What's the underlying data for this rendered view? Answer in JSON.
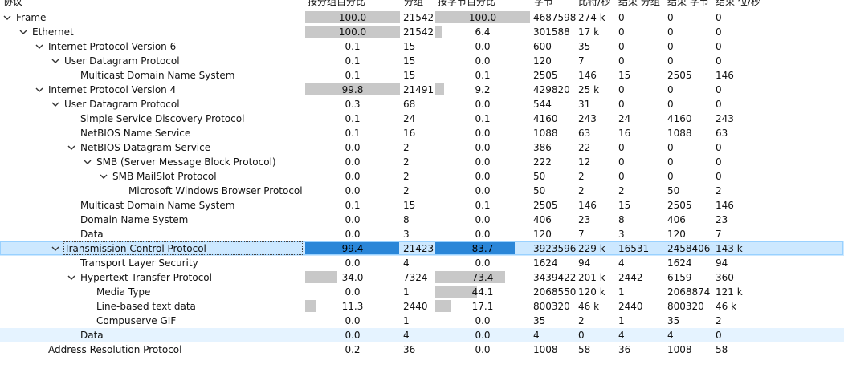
{
  "columns": [
    "协议",
    "按分组百分比",
    "分组",
    "按字节百分比",
    "字节",
    "比特/秒",
    "结束 分组",
    "结束 字节",
    "结束 位/秒"
  ],
  "rows": [
    {
      "level": 0,
      "expand": "open",
      "name": "Frame",
      "pp": "100.0",
      "pp_frac": 1.0,
      "packets": "21542",
      "bp": "100.0",
      "bp_frac": 1.0,
      "bytes": "4687598",
      "bps": "274 k",
      "ep": "0",
      "eb": "0",
      "ebps": "0"
    },
    {
      "level": 1,
      "expand": "open",
      "name": "Ethernet",
      "pp": "100.0",
      "pp_frac": 1.0,
      "packets": "21542",
      "bp": "6.4",
      "bp_frac": 0.064,
      "bytes": "301588",
      "bps": "17 k",
      "ep": "0",
      "eb": "0",
      "ebps": "0"
    },
    {
      "level": 2,
      "expand": "open",
      "name": "Internet Protocol Version 6",
      "pp": "0.1",
      "pp_frac": 0.001,
      "packets": "15",
      "bp": "0.0",
      "bp_frac": 0.0,
      "bytes": "600",
      "bps": "35",
      "ep": "0",
      "eb": "0",
      "ebps": "0"
    },
    {
      "level": 3,
      "expand": "open",
      "name": "User Datagram Protocol",
      "pp": "0.1",
      "pp_frac": 0.001,
      "packets": "15",
      "bp": "0.0",
      "bp_frac": 0.0,
      "bytes": "120",
      "bps": "7",
      "ep": "0",
      "eb": "0",
      "ebps": "0"
    },
    {
      "level": 4,
      "expand": "none",
      "name": "Multicast Domain Name System",
      "pp": "0.1",
      "pp_frac": 0.001,
      "packets": "15",
      "bp": "0.1",
      "bp_frac": 0.001,
      "bytes": "2505",
      "bps": "146",
      "ep": "15",
      "eb": "2505",
      "ebps": "146"
    },
    {
      "level": 2,
      "expand": "open",
      "name": "Internet Protocol Version 4",
      "pp": "99.8",
      "pp_frac": 0.998,
      "packets": "21491",
      "bp": "9.2",
      "bp_frac": 0.092,
      "bytes": "429820",
      "bps": "25 k",
      "ep": "0",
      "eb": "0",
      "ebps": "0"
    },
    {
      "level": 3,
      "expand": "open",
      "name": "User Datagram Protocol",
      "pp": "0.3",
      "pp_frac": 0.003,
      "packets": "68",
      "bp": "0.0",
      "bp_frac": 0.0,
      "bytes": "544",
      "bps": "31",
      "ep": "0",
      "eb": "0",
      "ebps": "0"
    },
    {
      "level": 4,
      "expand": "none",
      "name": "Simple Service Discovery Protocol",
      "pp": "0.1",
      "pp_frac": 0.001,
      "packets": "24",
      "bp": "0.1",
      "bp_frac": 0.001,
      "bytes": "4160",
      "bps": "243",
      "ep": "24",
      "eb": "4160",
      "ebps": "243"
    },
    {
      "level": 4,
      "expand": "none",
      "name": "NetBIOS Name Service",
      "pp": "0.1",
      "pp_frac": 0.001,
      "packets": "16",
      "bp": "0.0",
      "bp_frac": 0.0,
      "bytes": "1088",
      "bps": "63",
      "ep": "16",
      "eb": "1088",
      "ebps": "63"
    },
    {
      "level": 4,
      "expand": "open",
      "name": "NetBIOS Datagram Service",
      "pp": "0.0",
      "pp_frac": 0.0,
      "packets": "2",
      "bp": "0.0",
      "bp_frac": 0.0,
      "bytes": "386",
      "bps": "22",
      "ep": "0",
      "eb": "0",
      "ebps": "0"
    },
    {
      "level": 5,
      "expand": "open",
      "name": "SMB (Server Message Block Protocol)",
      "pp": "0.0",
      "pp_frac": 0.0,
      "packets": "2",
      "bp": "0.0",
      "bp_frac": 0.0,
      "bytes": "222",
      "bps": "12",
      "ep": "0",
      "eb": "0",
      "ebps": "0"
    },
    {
      "level": 6,
      "expand": "open",
      "name": "SMB MailSlot Protocol",
      "pp": "0.0",
      "pp_frac": 0.0,
      "packets": "2",
      "bp": "0.0",
      "bp_frac": 0.0,
      "bytes": "50",
      "bps": "2",
      "ep": "0",
      "eb": "0",
      "ebps": "0"
    },
    {
      "level": 7,
      "expand": "none",
      "name": "Microsoft Windows Browser Protocol",
      "pp": "0.0",
      "pp_frac": 0.0,
      "packets": "2",
      "bp": "0.0",
      "bp_frac": 0.0,
      "bytes": "50",
      "bps": "2",
      "ep": "2",
      "eb": "50",
      "ebps": "2"
    },
    {
      "level": 4,
      "expand": "none",
      "name": "Multicast Domain Name System",
      "pp": "0.1",
      "pp_frac": 0.001,
      "packets": "15",
      "bp": "0.1",
      "bp_frac": 0.001,
      "bytes": "2505",
      "bps": "146",
      "ep": "15",
      "eb": "2505",
      "ebps": "146"
    },
    {
      "level": 4,
      "expand": "none",
      "name": "Domain Name System",
      "pp": "0.0",
      "pp_frac": 0.0,
      "packets": "8",
      "bp": "0.0",
      "bp_frac": 0.0,
      "bytes": "406",
      "bps": "23",
      "ep": "8",
      "eb": "406",
      "ebps": "23"
    },
    {
      "level": 4,
      "expand": "none",
      "name": "Data",
      "pp": "0.0",
      "pp_frac": 0.0,
      "packets": "3",
      "bp": "0.0",
      "bp_frac": 0.0,
      "bytes": "120",
      "bps": "7",
      "ep": "3",
      "eb": "120",
      "ebps": "7"
    },
    {
      "level": 3,
      "expand": "open",
      "name": "Transmission Control Protocol",
      "pp": "99.4",
      "pp_frac": 0.994,
      "packets": "21423",
      "bp": "83.7",
      "bp_frac": 0.837,
      "bytes": "3923596",
      "bps": "229 k",
      "ep": "16531",
      "eb": "2458406",
      "ebps": "143 k",
      "selected": true
    },
    {
      "level": 4,
      "expand": "none",
      "name": "Transport Layer Security",
      "pp": "0.0",
      "pp_frac": 0.0,
      "packets": "4",
      "bp": "0.0",
      "bp_frac": 0.0,
      "bytes": "1624",
      "bps": "94",
      "ep": "4",
      "eb": "1624",
      "ebps": "94"
    },
    {
      "level": 4,
      "expand": "open",
      "name": "Hypertext Transfer Protocol",
      "pp": "34.0",
      "pp_frac": 0.34,
      "packets": "7324",
      "bp": "73.4",
      "bp_frac": 0.734,
      "bytes": "3439422",
      "bps": "201 k",
      "ep": "2442",
      "eb": "6159",
      "ebps": "360"
    },
    {
      "level": 5,
      "expand": "none",
      "name": "Media Type",
      "pp": "0.0",
      "pp_frac": 0.0,
      "packets": "1",
      "bp": "44.1",
      "bp_frac": 0.441,
      "bytes": "2068550",
      "bps": "120 k",
      "ep": "1",
      "eb": "2068874",
      "ebps": "121 k"
    },
    {
      "level": 5,
      "expand": "none",
      "name": "Line-based text data",
      "pp": "11.3",
      "pp_frac": 0.113,
      "packets": "2440",
      "bp": "17.1",
      "bp_frac": 0.171,
      "bytes": "800320",
      "bps": "46 k",
      "ep": "2440",
      "eb": "800320",
      "ebps": "46 k"
    },
    {
      "level": 5,
      "expand": "none",
      "name": "Compuserve GIF",
      "pp": "0.0",
      "pp_frac": 0.0,
      "packets": "1",
      "bp": "0.0",
      "bp_frac": 0.0,
      "bytes": "35",
      "bps": "2",
      "ep": "1",
      "eb": "35",
      "ebps": "2"
    },
    {
      "level": 4,
      "expand": "none",
      "name": "Data",
      "pp": "0.0",
      "pp_frac": 0.0,
      "packets": "4",
      "bp": "0.0",
      "bp_frac": 0.0,
      "bytes": "4",
      "bps": "0",
      "ep": "4",
      "eb": "4",
      "ebps": "0",
      "hover": true
    },
    {
      "level": 2,
      "expand": "none",
      "name": "Address Resolution Protocol",
      "pp": "0.2",
      "pp_frac": 0.002,
      "packets": "36",
      "bp": "0.0",
      "bp_frac": 0.0,
      "bytes": "1008",
      "bps": "58",
      "ep": "36",
      "eb": "1008",
      "ebps": "58"
    }
  ],
  "colors": {
    "bar": "#c8c8c8",
    "bar_selected": "#2a86d8",
    "row_selected": "#cce8ff",
    "row_hover": "#e5f3ff"
  },
  "icons": {
    "expander_open": "chevron-down-icon"
  }
}
